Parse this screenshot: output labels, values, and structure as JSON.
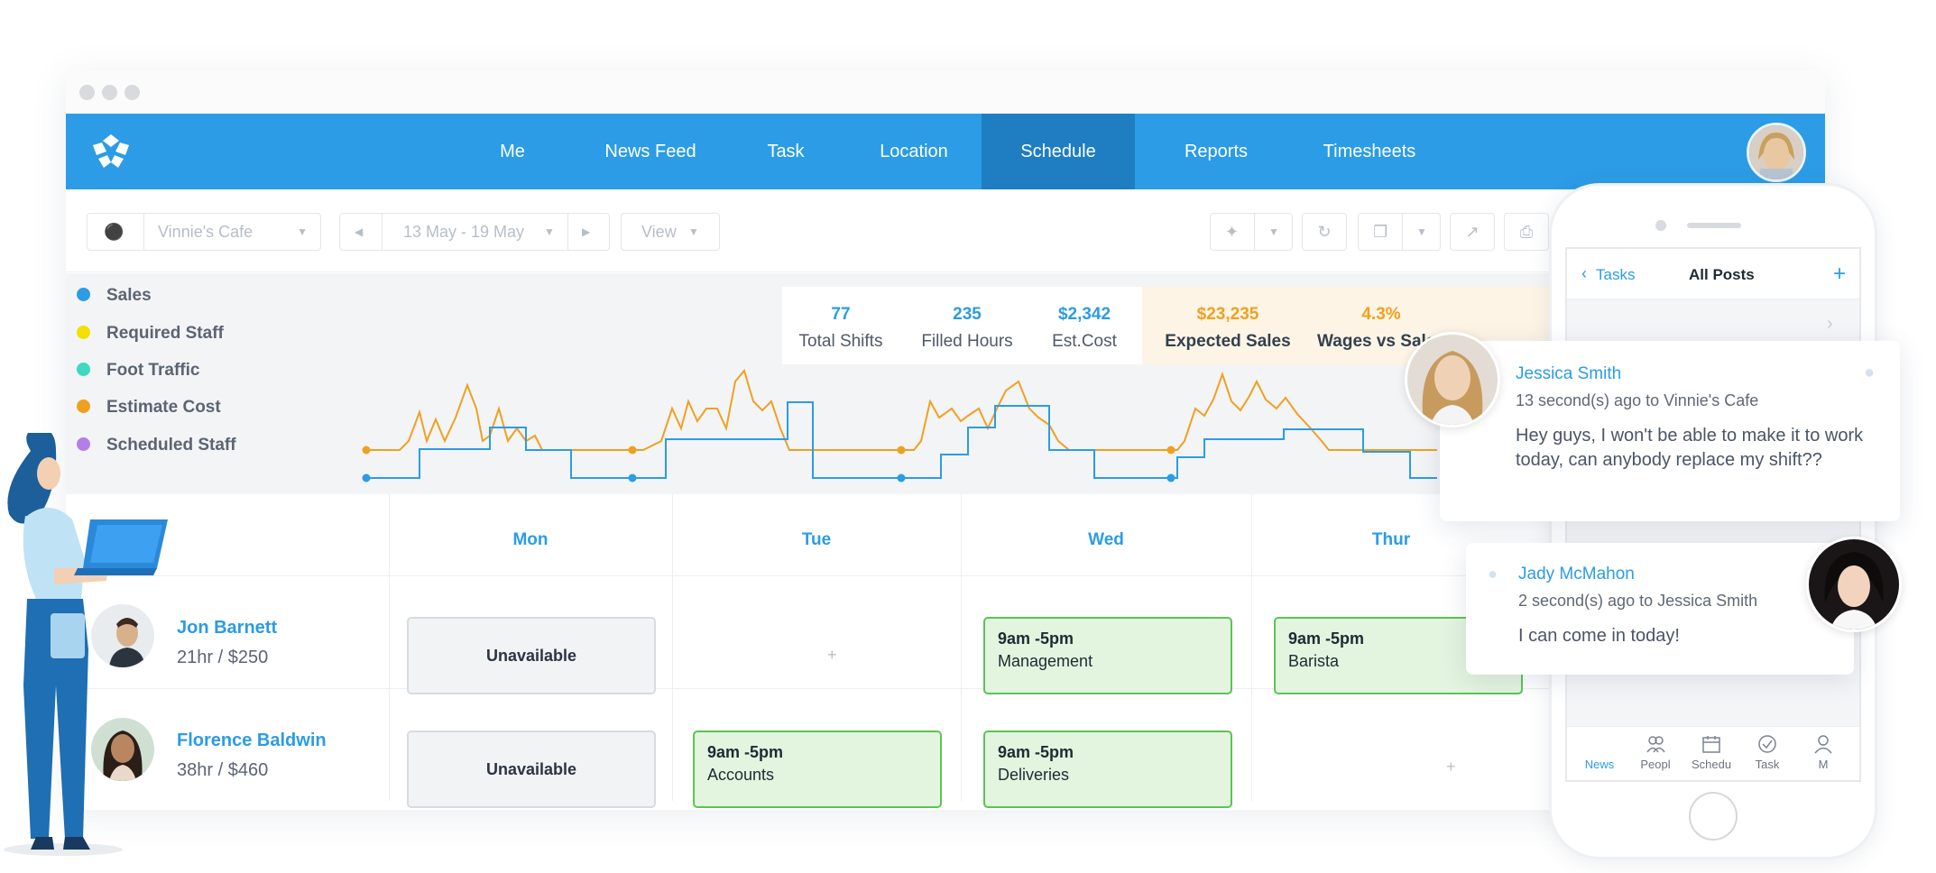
{
  "app": {
    "nav": [
      "Me",
      "News Feed",
      "Task",
      "Location",
      "Schedule",
      "Reports",
      "Timesheets"
    ],
    "active_nav": "Schedule"
  },
  "toolbar": {
    "location": "Vinnie's Cafe",
    "date_range": "13 May - 19 May",
    "view": "View"
  },
  "legend": [
    {
      "label": "Sales",
      "color": "#2b9ce5"
    },
    {
      "label": "Required Staff",
      "color": "#f2e000"
    },
    {
      "label": "Foot Traffic",
      "color": "#3fd8c2"
    },
    {
      "label": "Estimate Cost",
      "color": "#f0a020"
    },
    {
      "label": "Scheduled Staff",
      "color": "#b37ee8"
    }
  ],
  "stats": [
    {
      "value": "77",
      "label": "Total Shifts"
    },
    {
      "value": "235",
      "label": "Filled Hours"
    },
    {
      "value": "$2,342",
      "label": "Est.Cost"
    }
  ],
  "stats_warm": [
    {
      "value": "$23,235",
      "label": "Expected Sales"
    },
    {
      "value": "4.3%",
      "label": "Wages vs Sales"
    }
  ],
  "days": [
    "Mon",
    "Tue",
    "Wed",
    "Thur"
  ],
  "employees": [
    {
      "name": "Jon Barnett",
      "hours": "21hr / $250"
    },
    {
      "name": "Florence Baldwin",
      "hours": "38hr / $460"
    }
  ],
  "cells": {
    "unavailable": "Unavailable",
    "plus": "+",
    "jon_wed": {
      "time": "9am -5pm",
      "role": "Management"
    },
    "jon_thu": {
      "time": "9am -5pm",
      "role": "Barista"
    },
    "flo_tue": {
      "time": "9am -5pm",
      "role": "Accounts"
    },
    "flo_wed": {
      "time": "9am -5pm",
      "role": "Deliveries"
    }
  },
  "phone": {
    "back": "Tasks",
    "title": "All Posts",
    "add": "+",
    "tabs": [
      "News",
      "Peopl",
      "Schedu",
      "Task",
      "M"
    ]
  },
  "chats": [
    {
      "name": "Jessica Smith",
      "meta": "13 second(s) ago to Vinnie's Cafe",
      "message": "Hey guys, I won't be able to make it to work today, can anybody replace my shift??"
    },
    {
      "name": "Jady McMahon",
      "meta": "2 second(s) ago to Jessica Smith",
      "message": "I can come in today!"
    }
  ]
}
